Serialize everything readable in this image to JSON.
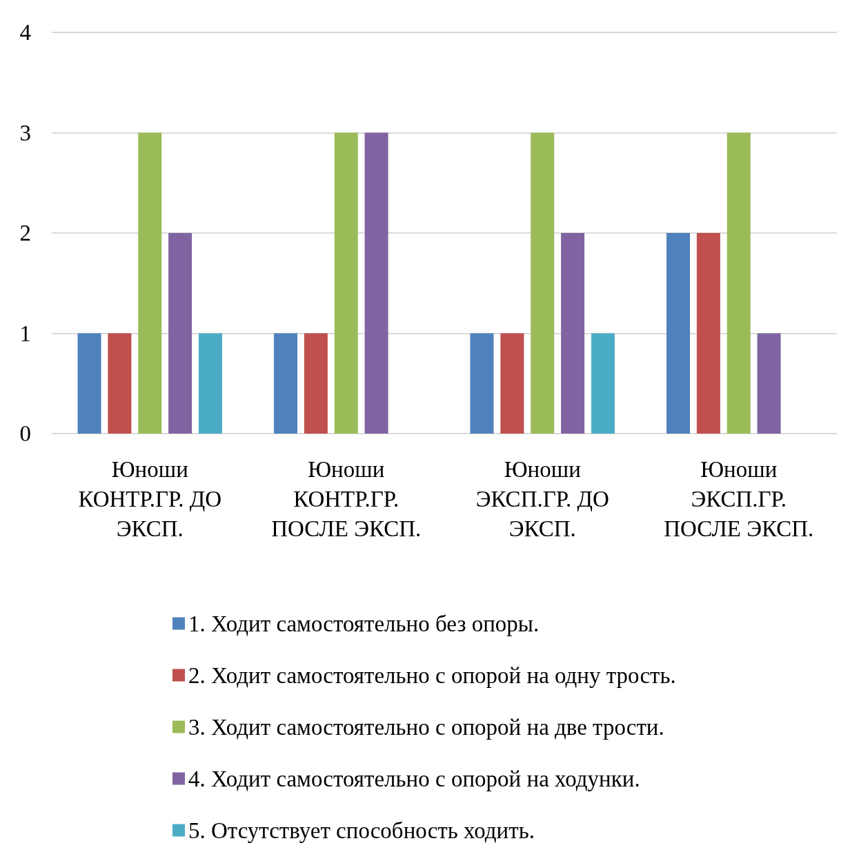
{
  "chart_data": {
    "type": "bar",
    "categories": [
      "Юноши\nКОНТР.ГР. ДО\nЭКСП.",
      "Юноши\nКОНТР.ГР.\nПОСЛЕ ЭКСП.",
      "Юноши\nЭКСП.ГР. ДО\nЭКСП.",
      "Юноши\nЭКСП.ГР.\nПОСЛЕ ЭКСП."
    ],
    "series": [
      {
        "name": "1. Ходит самостоятельно без опоры.",
        "color": "#4f81bd",
        "values": [
          1,
          1,
          1,
          2
        ]
      },
      {
        "name": "2. Ходит самостоятельно с опорой на одну трость.",
        "color": "#c0504d",
        "values": [
          1,
          1,
          1,
          2
        ]
      },
      {
        "name": "3. Ходит самостоятельно с опорой на две трости.",
        "color": "#9bbb59",
        "values": [
          3,
          3,
          3,
          3
        ]
      },
      {
        "name": "4. Ходит самостоятельно с опорой на ходунки.",
        "color": "#8064a2",
        "values": [
          2,
          3,
          2,
          1
        ]
      },
      {
        "name": "5. Отсутствует способность ходить.",
        "color": "#4bacc6",
        "values": [
          1,
          0,
          1,
          0
        ]
      }
    ],
    "ylim": [
      0,
      4
    ],
    "yticks": [
      0,
      1,
      2,
      3,
      4
    ],
    "grid": "y",
    "legend": "bottom"
  }
}
